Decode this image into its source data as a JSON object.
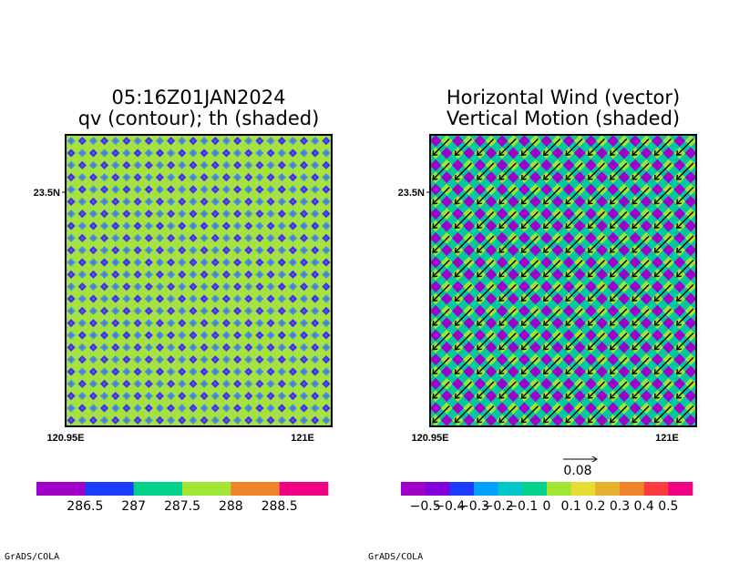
{
  "chart_data": [
    {
      "type": "heatmap",
      "title_lines": [
        "05:16Z01JAN2024",
        "qv (contour); th (shaded)"
      ],
      "x_ticks": [
        "120.95E",
        "121E"
      ],
      "y_ticks": [
        "23.5N"
      ],
      "pattern": {
        "rows": 24,
        "cols": 24,
        "background": "#a8e040",
        "dot_colors": [
          "#2a9fe0",
          "#1e3cff"
        ],
        "center_color": "#e0309a"
      },
      "colorbar": {
        "colors": [
          "#a000c8",
          "#1e3cff",
          "#00d28c",
          "#a0e632",
          "#f08228",
          "#f00082"
        ],
        "labels": [
          "286.5",
          "287",
          "287.5",
          "288",
          "288.5"
        ]
      },
      "credit": "GrADS/COLA"
    },
    {
      "type": "heatmap",
      "title_lines": [
        "Horizontal Wind (vector)",
        "Vertical Motion (shaded)"
      ],
      "x_ticks": [
        "120.95E",
        "121E"
      ],
      "y_ticks": [
        "23.5N"
      ],
      "pattern": {
        "rows": 24,
        "cols": 24,
        "background": "#00c8a0",
        "dot_colors": [
          "#a000c8",
          "#a0e632"
        ],
        "vector_dir": "southwest"
      },
      "vector_reference": "0.08",
      "colorbar": {
        "colors": [
          "#a000c8",
          "#8200dc",
          "#1e3cff",
          "#00a0ff",
          "#00c8c8",
          "#00d28c",
          "#a0e632",
          "#e6dc32",
          "#e6af2d",
          "#f08228",
          "#fa3c3c",
          "#f00082"
        ],
        "labels": [
          "−0.5",
          "−0.4",
          "−0.3",
          "−0.2",
          "−0.1",
          "0",
          "0.1",
          "0.2",
          "0.3",
          "0.4",
          "0.5"
        ]
      },
      "credit": "GrADS/COLA"
    }
  ]
}
